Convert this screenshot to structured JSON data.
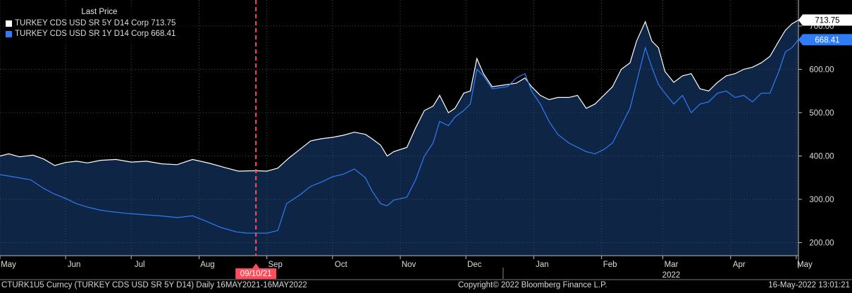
{
  "chart_data": {
    "type": "area",
    "legend": {
      "title": "Last Price",
      "placement": "top-left",
      "entries": [
        {
          "name": "TURKEY CDS USD SR 5Y D14 Corp",
          "value": "713.75",
          "color": "#ffffff"
        },
        {
          "name": "TURKEY CDS USD SR 1Y D14 Corp",
          "value": "668.41",
          "color": "#2f7cf6"
        }
      ]
    },
    "x_range": [
      "2021-05-16",
      "2022-05-16"
    ],
    "ylim": [
      170,
      760
    ],
    "y_ticks": [
      200,
      300,
      400,
      500,
      600,
      700
    ],
    "y_tick_labels": [
      "200.00",
      "300.00",
      "400.00",
      "500.00",
      "600.00",
      "700.00"
    ],
    "x_ticks": [
      {
        "date": "2021-05-16",
        "label": "May"
      },
      {
        "date": "2021-06-15",
        "label": "Jun"
      },
      {
        "date": "2021-07-15",
        "label": "Jul"
      },
      {
        "date": "2021-08-15",
        "label": "Aug"
      },
      {
        "date": "2021-09-15",
        "label": "Sep"
      },
      {
        "date": "2021-10-15",
        "label": "Oct"
      },
      {
        "date": "2021-11-15",
        "label": "Nov"
      },
      {
        "date": "2021-12-15",
        "label": "Dec"
      },
      {
        "date": "2022-01-15",
        "label": "Jan"
      },
      {
        "date": "2022-02-15",
        "label": "Feb"
      },
      {
        "date": "2022-03-15",
        "label": "Mar"
      },
      {
        "date": "2022-04-15",
        "label": "Apr"
      },
      {
        "date": "2022-05-15",
        "label": "May"
      }
    ],
    "year_label": {
      "date": "2022-03-15",
      "label": "2022"
    },
    "year_divider_date": "2022-01-01",
    "marker": {
      "date": "2021-09-10",
      "label": "09/10/21",
      "color": "#ff4d5e"
    },
    "last_values": [
      {
        "label": "713.75",
        "value": 713.75,
        "series": 0
      },
      {
        "label": "668.41",
        "value": 668.41,
        "series": 1
      }
    ],
    "grid": true,
    "series": [
      {
        "name": "TURKEY CDS USD SR 5Y D14 Corp",
        "color": "#ffffff",
        "filled": true,
        "points": [
          [
            "2021-05-16",
            400
          ],
          [
            "2021-05-20",
            405
          ],
          [
            "2021-05-25",
            398
          ],
          [
            "2021-05-31",
            402
          ],
          [
            "2021-06-05",
            393
          ],
          [
            "2021-06-10",
            378
          ],
          [
            "2021-06-15",
            385
          ],
          [
            "2021-06-20",
            388
          ],
          [
            "2021-06-25",
            384
          ],
          [
            "2021-07-01",
            390
          ],
          [
            "2021-07-08",
            392
          ],
          [
            "2021-07-15",
            386
          ],
          [
            "2021-07-22",
            388
          ],
          [
            "2021-07-29",
            382
          ],
          [
            "2021-08-05",
            380
          ],
          [
            "2021-08-12",
            392
          ],
          [
            "2021-08-20",
            383
          ],
          [
            "2021-08-27",
            373
          ],
          [
            "2021-09-02",
            365
          ],
          [
            "2021-09-10",
            366
          ],
          [
            "2021-09-15",
            365
          ],
          [
            "2021-09-20",
            372
          ],
          [
            "2021-09-25",
            395
          ],
          [
            "2021-09-30",
            415
          ],
          [
            "2021-10-05",
            435
          ],
          [
            "2021-10-10",
            440
          ],
          [
            "2021-10-15",
            443
          ],
          [
            "2021-10-20",
            448
          ],
          [
            "2021-10-25",
            455
          ],
          [
            "2021-10-30",
            450
          ],
          [
            "2021-11-02",
            440
          ],
          [
            "2021-11-06",
            425
          ],
          [
            "2021-11-09",
            400
          ],
          [
            "2021-11-12",
            410
          ],
          [
            "2021-11-18",
            420
          ],
          [
            "2021-11-22",
            465
          ],
          [
            "2021-11-26",
            505
          ],
          [
            "2021-11-30",
            515
          ],
          [
            "2021-12-03",
            540
          ],
          [
            "2021-12-07",
            500
          ],
          [
            "2021-12-10",
            510
          ],
          [
            "2021-12-14",
            545
          ],
          [
            "2021-12-17",
            550
          ],
          [
            "2021-12-20",
            625
          ],
          [
            "2021-12-23",
            590
          ],
          [
            "2021-12-27",
            560
          ],
          [
            "2022-01-03",
            565
          ],
          [
            "2022-01-07",
            568
          ],
          [
            "2022-01-11",
            580
          ],
          [
            "2022-01-14",
            560
          ],
          [
            "2022-01-18",
            540
          ],
          [
            "2022-01-22",
            530
          ],
          [
            "2022-01-26",
            535
          ],
          [
            "2022-01-31",
            535
          ],
          [
            "2022-02-04",
            540
          ],
          [
            "2022-02-08",
            510
          ],
          [
            "2022-02-12",
            520
          ],
          [
            "2022-02-16",
            540
          ],
          [
            "2022-02-20",
            560
          ],
          [
            "2022-02-24",
            600
          ],
          [
            "2022-02-28",
            615
          ],
          [
            "2022-03-03",
            665
          ],
          [
            "2022-03-07",
            710
          ],
          [
            "2022-03-10",
            665
          ],
          [
            "2022-03-13",
            650
          ],
          [
            "2022-03-16",
            595
          ],
          [
            "2022-03-20",
            570
          ],
          [
            "2022-03-24",
            585
          ],
          [
            "2022-03-28",
            590
          ],
          [
            "2022-04-01",
            555
          ],
          [
            "2022-04-05",
            550
          ],
          [
            "2022-04-09",
            570
          ],
          [
            "2022-04-13",
            585
          ],
          [
            "2022-04-17",
            590
          ],
          [
            "2022-04-21",
            600
          ],
          [
            "2022-04-25",
            605
          ],
          [
            "2022-04-29",
            615
          ],
          [
            "2022-05-03",
            630
          ],
          [
            "2022-05-07",
            665
          ],
          [
            "2022-05-10",
            690
          ],
          [
            "2022-05-13",
            705
          ],
          [
            "2022-05-16",
            713.75
          ]
        ]
      },
      {
        "name": "TURKEY CDS USD SR 1Y D14 Corp",
        "color": "#2f7cf6",
        "filled": false,
        "points": [
          [
            "2021-05-16",
            357
          ],
          [
            "2021-05-22",
            352
          ],
          [
            "2021-05-30",
            345
          ],
          [
            "2021-06-05",
            325
          ],
          [
            "2021-06-10",
            312
          ],
          [
            "2021-06-15",
            302
          ],
          [
            "2021-06-20",
            290
          ],
          [
            "2021-06-25",
            282
          ],
          [
            "2021-07-01",
            275
          ],
          [
            "2021-07-05",
            272
          ],
          [
            "2021-07-12",
            268
          ],
          [
            "2021-07-20",
            265
          ],
          [
            "2021-07-28",
            262
          ],
          [
            "2021-08-05",
            258
          ],
          [
            "2021-08-12",
            262
          ],
          [
            "2021-08-18",
            250
          ],
          [
            "2021-08-25",
            235
          ],
          [
            "2021-09-01",
            225
          ],
          [
            "2021-09-06",
            222
          ],
          [
            "2021-09-10",
            222
          ],
          [
            "2021-09-15",
            222
          ],
          [
            "2021-09-20",
            228
          ],
          [
            "2021-09-24",
            290
          ],
          [
            "2021-09-30",
            310
          ],
          [
            "2021-10-05",
            330
          ],
          [
            "2021-10-10",
            340
          ],
          [
            "2021-10-15",
            352
          ],
          [
            "2021-10-20",
            358
          ],
          [
            "2021-10-25",
            370
          ],
          [
            "2021-10-30",
            350
          ],
          [
            "2021-11-02",
            320
          ],
          [
            "2021-11-06",
            290
          ],
          [
            "2021-11-09",
            285
          ],
          [
            "2021-11-12",
            298
          ],
          [
            "2021-11-18",
            305
          ],
          [
            "2021-11-22",
            345
          ],
          [
            "2021-11-26",
            400
          ],
          [
            "2021-11-30",
            430
          ],
          [
            "2021-12-03",
            480
          ],
          [
            "2021-12-07",
            470
          ],
          [
            "2021-12-10",
            490
          ],
          [
            "2021-12-14",
            505
          ],
          [
            "2021-12-17",
            520
          ],
          [
            "2021-12-20",
            600
          ],
          [
            "2021-12-23",
            585
          ],
          [
            "2021-12-27",
            555
          ],
          [
            "2022-01-03",
            560
          ],
          [
            "2022-01-07",
            580
          ],
          [
            "2022-01-11",
            590
          ],
          [
            "2022-01-14",
            550
          ],
          [
            "2022-01-18",
            520
          ],
          [
            "2022-01-22",
            480
          ],
          [
            "2022-01-26",
            450
          ],
          [
            "2022-01-31",
            430
          ],
          [
            "2022-02-04",
            420
          ],
          [
            "2022-02-08",
            410
          ],
          [
            "2022-02-12",
            405
          ],
          [
            "2022-02-16",
            415
          ],
          [
            "2022-02-20",
            430
          ],
          [
            "2022-02-24",
            470
          ],
          [
            "2022-02-28",
            510
          ],
          [
            "2022-03-03",
            570
          ],
          [
            "2022-03-07",
            650
          ],
          [
            "2022-03-10",
            605
          ],
          [
            "2022-03-13",
            565
          ],
          [
            "2022-03-16",
            545
          ],
          [
            "2022-03-20",
            520
          ],
          [
            "2022-03-24",
            540
          ],
          [
            "2022-03-28",
            500
          ],
          [
            "2022-04-01",
            520
          ],
          [
            "2022-04-05",
            525
          ],
          [
            "2022-04-09",
            545
          ],
          [
            "2022-04-13",
            550
          ],
          [
            "2022-04-17",
            535
          ],
          [
            "2022-04-21",
            540
          ],
          [
            "2022-04-25",
            525
          ],
          [
            "2022-04-29",
            545
          ],
          [
            "2022-05-03",
            545
          ],
          [
            "2022-05-07",
            595
          ],
          [
            "2022-05-10",
            640
          ],
          [
            "2022-05-13",
            650
          ],
          [
            "2022-05-16",
            668.41
          ]
        ]
      }
    ]
  },
  "footer": {
    "left": "CTURK1U5 Curncy (TURKEY CDS USD SR 5Y D14)  Daily 16MAY2021-16MAY2022",
    "center": "Copyright© 2022 Bloomberg Finance L.P.",
    "right": "16-May-2022 13:01:21"
  }
}
